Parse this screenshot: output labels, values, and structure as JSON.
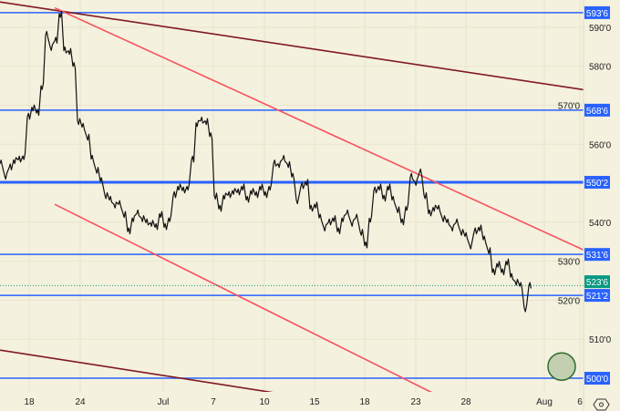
{
  "chart_data": {
    "type": "line",
    "price_format": "eighths",
    "colors": {
      "background": "#f4f1de",
      "price": "#111111",
      "level": "#2962ff",
      "trend_red": "#f7525f",
      "trend_dark": "#801922",
      "current": "#089981",
      "marker": "#c3cfb0"
    },
    "y_ticks": [
      {
        "value": 590,
        "label": "590'0"
      },
      {
        "value": 580,
        "label": "580'0"
      },
      {
        "value": 570,
        "label": "570'0"
      },
      {
        "value": 560,
        "label": "560'0"
      },
      {
        "value": 540,
        "label": "540'0"
      },
      {
        "value": 530,
        "label": "530'0"
      },
      {
        "value": 520,
        "label": "520'0"
      },
      {
        "value": 510,
        "label": "510'0"
      }
    ],
    "ylim": [
      496.5,
      597
    ],
    "xlim": [
      0,
      128
    ],
    "x_ticks": [
      {
        "index": 6.4,
        "label": "18"
      },
      {
        "index": 17.6,
        "label": "24"
      },
      {
        "index": 35.8,
        "label": "Jul"
      },
      {
        "index": 46.8,
        "label": "7"
      },
      {
        "index": 58,
        "label": "10"
      },
      {
        "index": 69,
        "label": "15"
      },
      {
        "index": 80,
        "label": "18"
      },
      {
        "index": 91.2,
        "label": "23"
      },
      {
        "index": 102.2,
        "label": "28"
      },
      {
        "index": 119.4,
        "label": "Aug"
      },
      {
        "index": 127.2,
        "label": "6"
      }
    ],
    "series": [
      {
        "values": [
          555,
          552,
          554,
          556,
          556,
          557,
          567,
          569.5,
          568,
          575,
          588,
          585,
          586.5,
          593.5,
          584,
          584,
          580,
          566,
          564.4,
          562,
          556.2,
          553.5,
          550.5,
          547,
          545.7,
          544.6,
          544.6,
          542.2,
          537.6,
          541.1,
          542.2,
          541.1,
          539.9,
          539.9,
          538.7,
          542.2,
          538.7,
          541.1,
          546.9,
          549.2,
          548.1,
          549.2,
          556,
          565.5,
          566,
          566,
          562,
          546.9,
          543.4,
          546.9,
          546.9,
          548.1,
          547.6,
          549.2,
          545.7,
          548.1,
          546.9,
          549.2,
          546.9,
          549.2,
          555,
          555,
          556.2,
          555,
          551.6,
          545.7,
          549.2,
          550.4,
          543.4,
          544.6,
          541.1,
          538.7,
          539.9,
          541.1,
          537.6,
          541.1,
          542.2,
          539.9,
          541.1,
          537.6,
          534,
          541,
          548.1,
          549.2,
          546,
          549.2,
          545.7,
          543.4,
          539.9,
          544,
          551.6,
          550.4,
          552.7,
          547,
          542.2,
          543.8,
          543.4,
          541.1,
          539.9,
          538.7,
          539.9,
          537.6,
          536.4,
          534.1,
          537.6,
          538.7,
          535.5,
          532.9,
          527.1,
          529.4,
          527.1,
          530,
          525.9,
          524.8,
          523.6,
          518,
          523.6
        ]
      }
    ],
    "levels": [
      {
        "value": 593.75,
        "label": "593'6",
        "thick": false
      },
      {
        "value": 568.75,
        "label": "568'6",
        "thick": false
      },
      {
        "value": 550.25,
        "label": "550'2",
        "thick": true
      },
      {
        "value": 531.75,
        "label": "531'6",
        "thick": false
      },
      {
        "value": 521.25,
        "label": "521'2",
        "thick": false
      },
      {
        "value": 500,
        "label": "500'0",
        "thick": false
      }
    ],
    "current_price": {
      "value": 523.75,
      "label": "523'6"
    },
    "trendlines": [
      {
        "color": "trend_dark",
        "from": [
          0,
          596.5
        ],
        "to": [
          128,
          574
        ]
      },
      {
        "color": "trend_red",
        "from": [
          12,
          595
        ],
        "to": [
          128,
          532.9
        ]
      },
      {
        "color": "trend_red",
        "from": [
          12,
          544.6
        ],
        "to": [
          97,
          495
        ]
      },
      {
        "color": "trend_dark",
        "from": [
          0,
          507.2
        ],
        "to": [
          60,
          496.3
        ]
      }
    ],
    "marker_circle": {
      "index": 123.2,
      "price": 503
    }
  },
  "toolbar": {
    "settings_icon": "gear-icon"
  }
}
